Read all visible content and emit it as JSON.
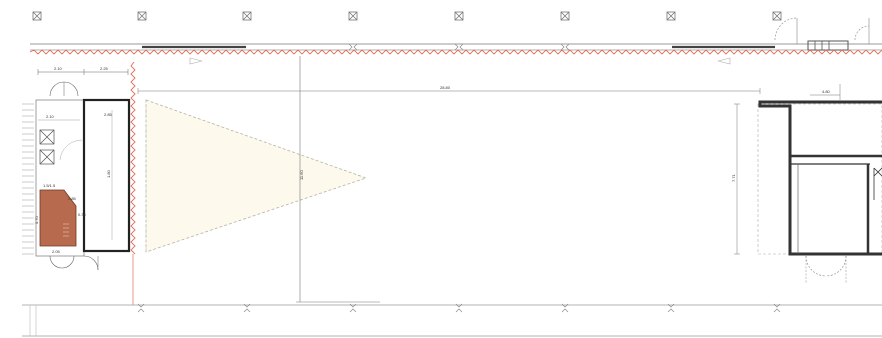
{
  "plan": {
    "dimensions": {
      "top_left_a": "2.10",
      "top_left_b": "2.25",
      "inner_left_a": "2.10",
      "inner_left_b": "2.85",
      "room_height": "1.80",
      "overall_width": "28.80",
      "triangle_height": "11.60",
      "right_block_height": "7.71",
      "right_top": "4.80",
      "small_label_a": "1.5/1.5",
      "small_label_b": "0.70",
      "small_label_c": "2.85",
      "small_label_d": "0.35",
      "small_label_e": "2.05"
    }
  }
}
